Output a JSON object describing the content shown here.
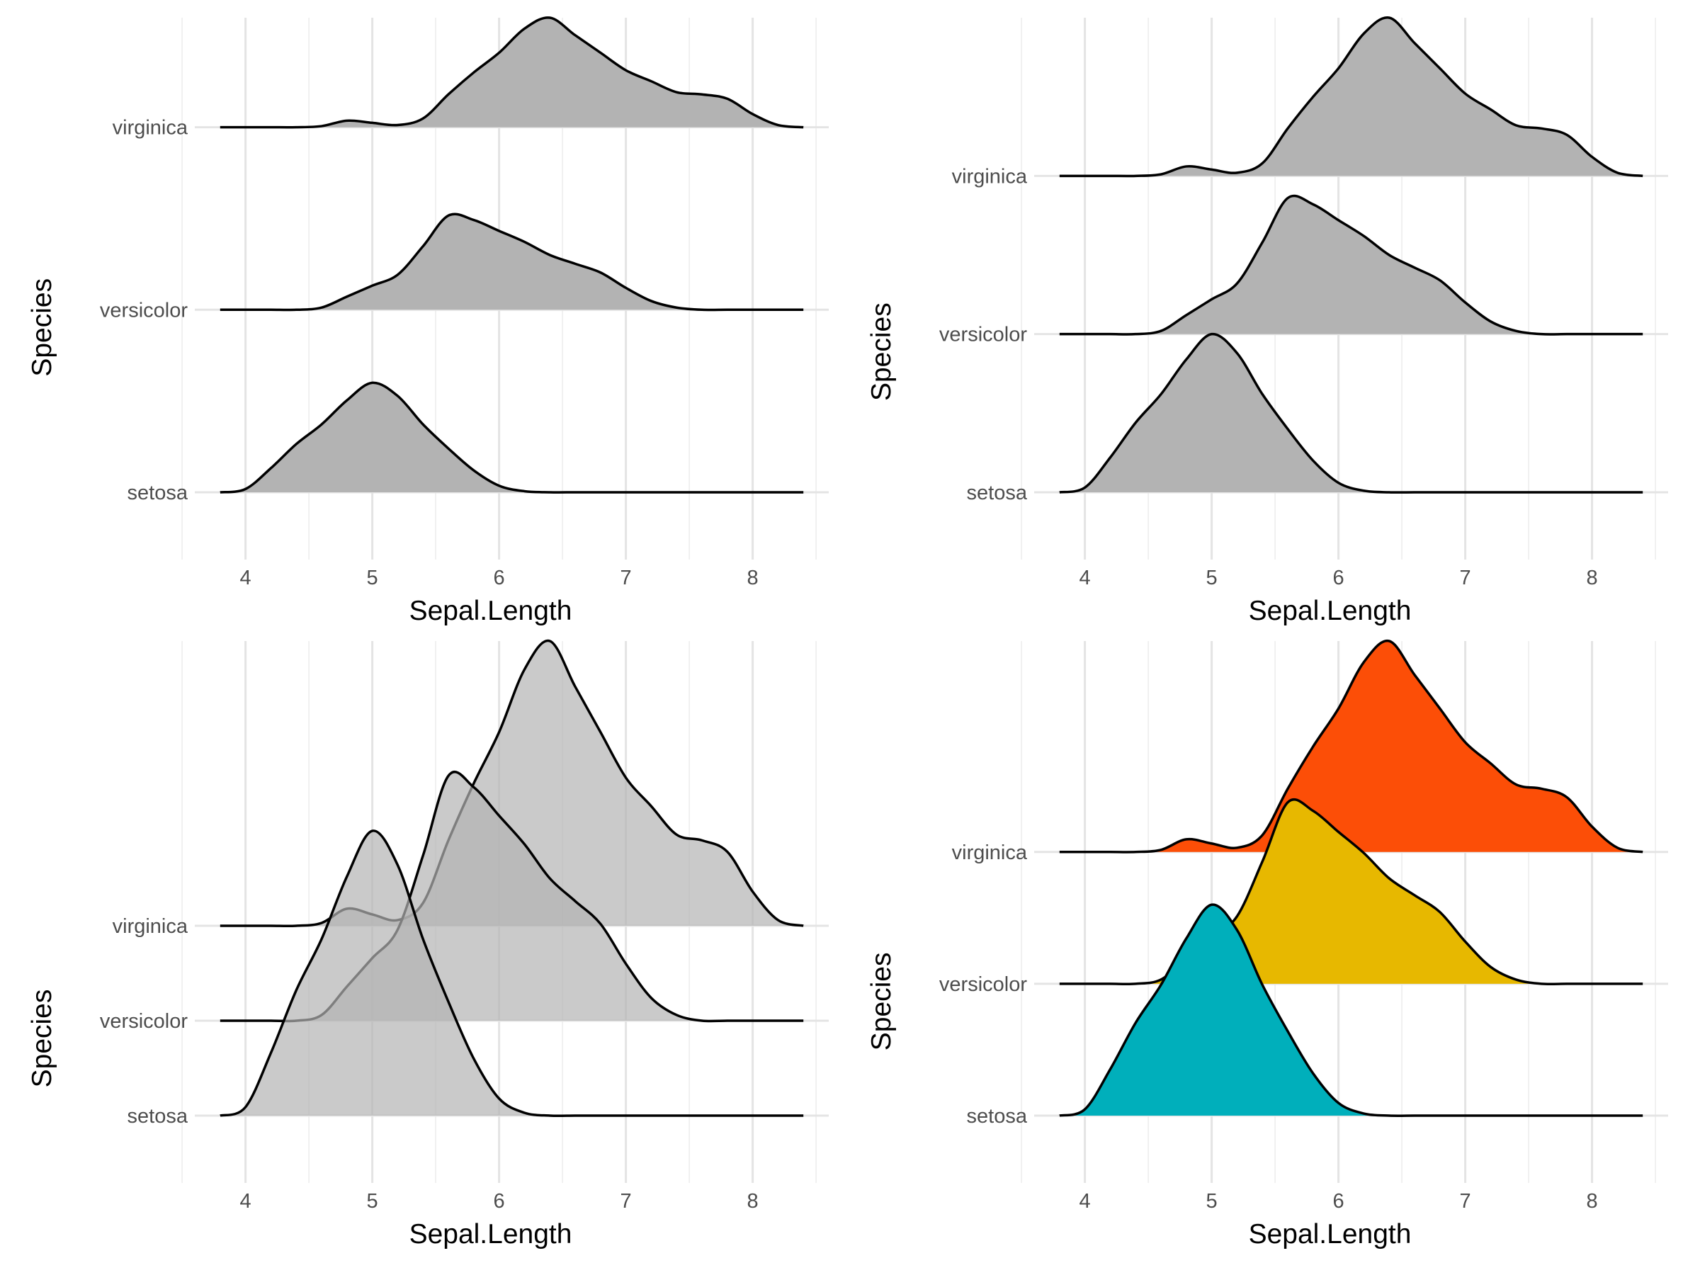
{
  "chart_data": [
    {
      "type": "area",
      "variant": "ridgeline",
      "x": [
        3.8,
        4.0,
        4.2,
        4.4,
        4.6,
        4.8,
        5.0,
        5.2,
        5.4,
        5.6,
        5.8,
        6.0,
        6.2,
        6.4,
        6.6,
        6.8,
        7.0,
        7.2,
        7.4,
        7.6,
        7.8,
        8.0,
        8.2,
        8.4
      ],
      "series": [
        {
          "name": "setosa",
          "values": [
            0.0,
            0.03,
            0.22,
            0.44,
            0.62,
            0.84,
            1.0,
            0.88,
            0.62,
            0.4,
            0.2,
            0.06,
            0.01,
            0.0,
            0.0,
            0.0,
            0.0,
            0.0,
            0.0,
            0.0,
            0.0,
            0.0,
            0.0,
            0.0
          ]
        },
        {
          "name": "versicolor",
          "values": [
            0.0,
            0.0,
            0.0,
            0.0,
            0.02,
            0.12,
            0.22,
            0.32,
            0.58,
            0.86,
            0.82,
            0.72,
            0.62,
            0.5,
            0.42,
            0.34,
            0.2,
            0.08,
            0.02,
            0.0,
            0.0,
            0.0,
            0.0,
            0.0
          ]
        },
        {
          "name": "virginica",
          "values": [
            0.0,
            0.0,
            0.0,
            0.0,
            0.01,
            0.06,
            0.04,
            0.02,
            0.08,
            0.3,
            0.5,
            0.68,
            0.9,
            1.0,
            0.84,
            0.68,
            0.52,
            0.42,
            0.32,
            0.3,
            0.26,
            0.12,
            0.02,
            0.0
          ]
        }
      ],
      "categories": [
        "setosa",
        "versicolor",
        "virginica"
      ],
      "xlabel": "Sepal.Length",
      "ylabel": "Species",
      "xticks": [
        4,
        5,
        6,
        7,
        8
      ],
      "xlim": [
        3.6,
        8.6
      ],
      "scale": 0.6,
      "fill": "#b3b3b3",
      "fill_opacity": 1,
      "per_series_colors": false,
      "legend": "none",
      "grid": true
    },
    {
      "type": "area",
      "variant": "ridgeline",
      "x": [
        3.8,
        4.0,
        4.2,
        4.4,
        4.6,
        4.8,
        5.0,
        5.2,
        5.4,
        5.6,
        5.8,
        6.0,
        6.2,
        6.4,
        6.6,
        6.8,
        7.0,
        7.2,
        7.4,
        7.6,
        7.8,
        8.0,
        8.2,
        8.4
      ],
      "series": [
        {
          "name": "setosa",
          "values": [
            0.0,
            0.03,
            0.22,
            0.44,
            0.62,
            0.84,
            1.0,
            0.88,
            0.62,
            0.4,
            0.2,
            0.06,
            0.01,
            0.0,
            0.0,
            0.0,
            0.0,
            0.0,
            0.0,
            0.0,
            0.0,
            0.0,
            0.0,
            0.0
          ]
        },
        {
          "name": "versicolor",
          "values": [
            0.0,
            0.0,
            0.0,
            0.0,
            0.02,
            0.12,
            0.22,
            0.32,
            0.58,
            0.86,
            0.82,
            0.72,
            0.62,
            0.5,
            0.42,
            0.34,
            0.2,
            0.08,
            0.02,
            0.0,
            0.0,
            0.0,
            0.0,
            0.0
          ]
        },
        {
          "name": "virginica",
          "values": [
            0.0,
            0.0,
            0.0,
            0.0,
            0.01,
            0.06,
            0.04,
            0.02,
            0.08,
            0.3,
            0.5,
            0.68,
            0.9,
            1.0,
            0.84,
            0.68,
            0.52,
            0.42,
            0.32,
            0.3,
            0.26,
            0.12,
            0.02,
            0.0
          ]
        }
      ],
      "categories": [
        "setosa",
        "versicolor",
        "virginica"
      ],
      "xlabel": "Sepal.Length",
      "ylabel": "Species",
      "xticks": [
        4,
        5,
        6,
        7,
        8
      ],
      "xlim": [
        3.6,
        8.6
      ],
      "scale": 1.0,
      "fill": "#b3b3b3",
      "fill_opacity": 1,
      "per_series_colors": false,
      "legend": "none",
      "grid": true
    },
    {
      "type": "area",
      "variant": "ridgeline",
      "x": [
        3.8,
        4.0,
        4.2,
        4.4,
        4.6,
        4.8,
        5.0,
        5.2,
        5.4,
        5.6,
        5.8,
        6.0,
        6.2,
        6.4,
        6.6,
        6.8,
        7.0,
        7.2,
        7.4,
        7.6,
        7.8,
        8.0,
        8.2,
        8.4
      ],
      "series": [
        {
          "name": "setosa",
          "values": [
            0.0,
            0.03,
            0.22,
            0.44,
            0.62,
            0.84,
            1.0,
            0.88,
            0.62,
            0.4,
            0.2,
            0.06,
            0.01,
            0.0,
            0.0,
            0.0,
            0.0,
            0.0,
            0.0,
            0.0,
            0.0,
            0.0,
            0.0,
            0.0
          ]
        },
        {
          "name": "versicolor",
          "values": [
            0.0,
            0.0,
            0.0,
            0.0,
            0.02,
            0.12,
            0.22,
            0.32,
            0.58,
            0.86,
            0.82,
            0.72,
            0.62,
            0.5,
            0.42,
            0.34,
            0.2,
            0.08,
            0.02,
            0.0,
            0.0,
            0.0,
            0.0,
            0.0
          ]
        },
        {
          "name": "virginica",
          "values": [
            0.0,
            0.0,
            0.0,
            0.0,
            0.01,
            0.06,
            0.04,
            0.02,
            0.08,
            0.3,
            0.5,
            0.68,
            0.9,
            1.0,
            0.84,
            0.68,
            0.52,
            0.42,
            0.32,
            0.3,
            0.26,
            0.12,
            0.02,
            0.0
          ]
        }
      ],
      "categories": [
        "setosa",
        "versicolor",
        "virginica"
      ],
      "xlabel": "Sepal.Length",
      "ylabel": "Species",
      "xticks": [
        4,
        5,
        6,
        7,
        8
      ],
      "xlim": [
        3.6,
        8.6
      ],
      "scale": 3.0,
      "fill": "#b3b3b3",
      "fill_opacity": 0.7,
      "per_series_colors": false,
      "legend": "none",
      "grid": true
    },
    {
      "type": "area",
      "variant": "ridgeline",
      "x": [
        3.8,
        4.0,
        4.2,
        4.4,
        4.6,
        4.8,
        5.0,
        5.2,
        5.4,
        5.6,
        5.8,
        6.0,
        6.2,
        6.4,
        6.6,
        6.8,
        7.0,
        7.2,
        7.4,
        7.6,
        7.8,
        8.0,
        8.2,
        8.4
      ],
      "series": [
        {
          "name": "setosa",
          "values": [
            0.0,
            0.03,
            0.22,
            0.44,
            0.62,
            0.84,
            1.0,
            0.88,
            0.62,
            0.4,
            0.2,
            0.06,
            0.01,
            0.0,
            0.0,
            0.0,
            0.0,
            0.0,
            0.0,
            0.0,
            0.0,
            0.0,
            0.0,
            0.0
          ]
        },
        {
          "name": "versicolor",
          "values": [
            0.0,
            0.0,
            0.0,
            0.0,
            0.02,
            0.12,
            0.22,
            0.32,
            0.58,
            0.86,
            0.82,
            0.72,
            0.62,
            0.5,
            0.42,
            0.34,
            0.2,
            0.08,
            0.02,
            0.0,
            0.0,
            0.0,
            0.0,
            0.0
          ]
        },
        {
          "name": "virginica",
          "values": [
            0.0,
            0.0,
            0.0,
            0.0,
            0.01,
            0.06,
            0.04,
            0.02,
            0.08,
            0.3,
            0.5,
            0.68,
            0.9,
            1.0,
            0.84,
            0.68,
            0.52,
            0.42,
            0.32,
            0.3,
            0.26,
            0.12,
            0.02,
            0.0
          ]
        }
      ],
      "categories": [
        "setosa",
        "versicolor",
        "virginica"
      ],
      "xlabel": "Sepal.Length",
      "ylabel": "Species",
      "xticks": [
        4,
        5,
        6,
        7,
        8
      ],
      "xlim": [
        3.6,
        8.6
      ],
      "scale": 1.6,
      "fill": "#b3b3b3",
      "fill_opacity": 1,
      "per_series_colors": true,
      "colors": [
        "#00AFBB",
        "#E7B800",
        "#FC4E07"
      ],
      "legend": "none",
      "grid": true
    }
  ]
}
